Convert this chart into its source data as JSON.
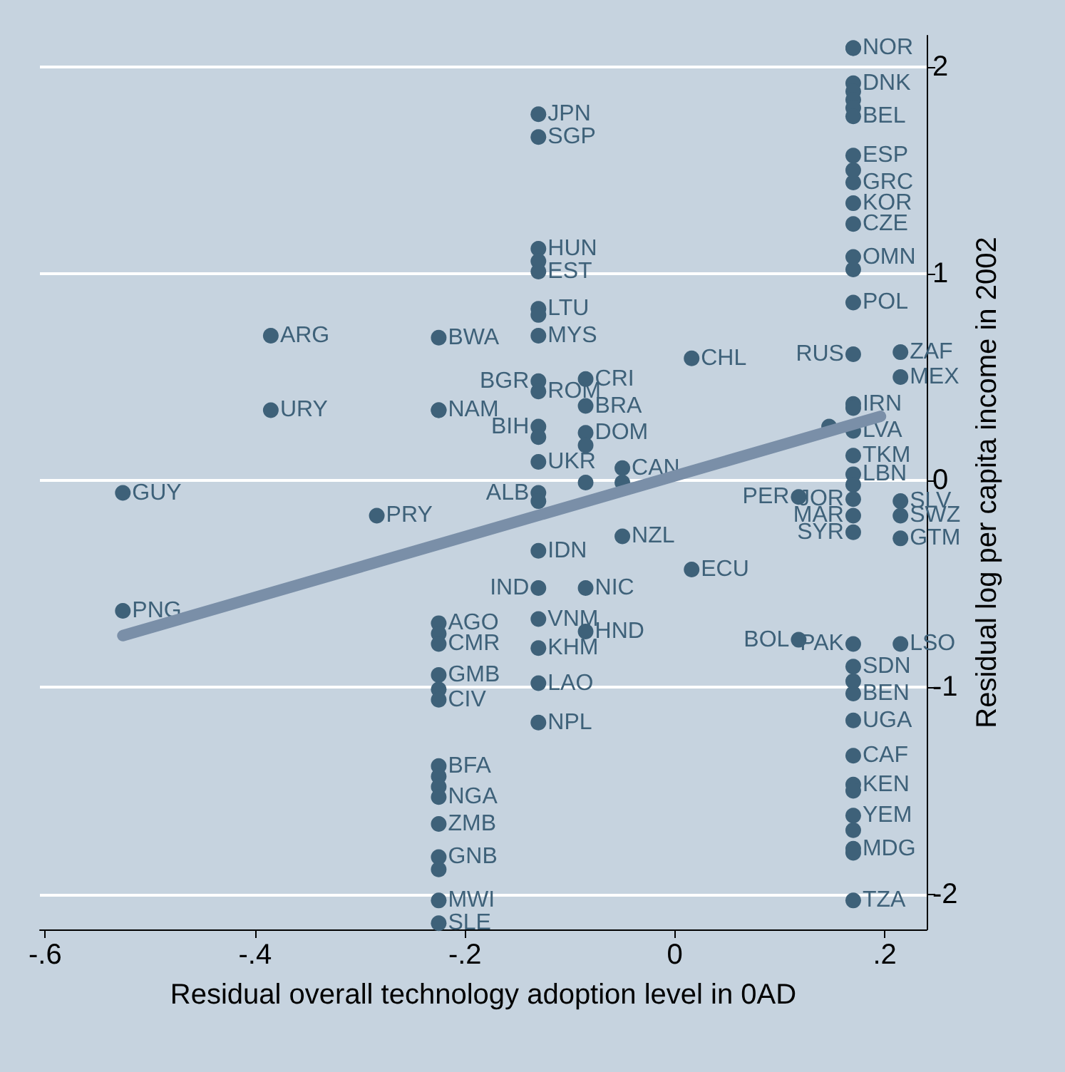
{
  "chart_data": {
    "type": "scatter",
    "xlabel": "Residual overall technology adoption level in 0AD",
    "ylabel": "Residual log per capita income in 2002",
    "xlim": [
      -0.605,
      0.24
    ],
    "ylim": [
      -2.17,
      2.15
    ],
    "xticks": [
      {
        "value": -0.6,
        "label": "-.6"
      },
      {
        "value": -0.4,
        "label": "-.4"
      },
      {
        "value": -0.2,
        "label": "-.2"
      },
      0,
      {
        "value": 0.2,
        "label": ".2"
      }
    ],
    "yticks": [
      -2,
      -1,
      0,
      1,
      2
    ],
    "grid": "y",
    "marker": "circle",
    "series": [
      {
        "color": "#3e6179",
        "x": [
          0.17,
          0.17,
          0.17,
          0.17,
          0.17,
          0.17,
          0.17,
          0.17,
          0.17,
          0.17,
          0.17,
          0.17,
          0.17,
          0.17,
          0.17,
          0.17,
          0.17,
          0.215,
          0.215,
          0.17,
          0.17,
          0.147,
          0.17,
          0.17,
          0.17,
          0.17,
          0.17,
          0.215,
          0.17,
          0.215,
          0.215,
          0.118,
          0.118,
          0.17,
          0.215,
          0.17,
          0.17,
          0.17,
          0.17,
          0.17,
          0.17,
          0.17,
          0.17,
          0.17,
          0.17,
          0.17,
          0.17,
          -0.13,
          -0.13,
          -0.13,
          -0.13,
          -0.13,
          -0.13,
          -0.13,
          -0.13,
          -0.13,
          -0.13,
          -0.085,
          -0.085,
          -0.13,
          -0.13,
          -0.085,
          -0.085,
          -0.13,
          -0.05,
          -0.13,
          -0.13,
          -0.085,
          -0.05,
          -0.05,
          0.016,
          -0.13,
          -0.13,
          -0.085,
          -0.13,
          -0.085,
          -0.13,
          -0.13,
          -0.13,
          0.016,
          -0.225,
          -0.225,
          -0.225,
          -0.225,
          -0.225,
          -0.225,
          -0.225,
          -0.225,
          -0.225,
          -0.225,
          -0.225,
          -0.225,
          -0.225,
          -0.225,
          -0.225,
          -0.225,
          -0.225,
          -0.225,
          -0.385,
          -0.385,
          -0.526,
          -0.284,
          -0.526
        ],
        "values": [
          2.09,
          2.09,
          1.92,
          1.88,
          1.84,
          1.8,
          1.76,
          1.57,
          1.5,
          1.44,
          1.34,
          1.24,
          1.08,
          1.02,
          0.86,
          0.61,
          0.37,
          0.62,
          0.5,
          0.35,
          0.24,
          0.26,
          0.12,
          0.03,
          -0.02,
          -0.09,
          -0.17,
          -0.1,
          -0.25,
          -0.17,
          -0.28,
          -0.08,
          -0.77,
          -0.79,
          -0.79,
          -0.9,
          -0.97,
          -1.03,
          -1.16,
          -1.33,
          -1.47,
          -1.5,
          -1.62,
          -1.69,
          -1.78,
          -1.8,
          -2.03,
          1.77,
          1.66,
          1.12,
          1.06,
          1.01,
          0.83,
          0.8,
          0.7,
          0.48,
          0.43,
          0.49,
          0.36,
          0.26,
          0.21,
          0.23,
          0.17,
          0.09,
          0.06,
          -0.06,
          -0.1,
          -0.01,
          -0.01,
          -0.27,
          0.59,
          -0.34,
          -0.52,
          -0.52,
          -0.67,
          -0.73,
          -0.81,
          -0.98,
          -1.17,
          -0.43,
          0.69,
          0.34,
          0.34,
          -0.69,
          -0.74,
          -0.79,
          -0.94,
          -1.01,
          -1.06,
          -1.38,
          -1.43,
          -1.48,
          -1.53,
          -1.66,
          -1.82,
          -1.88,
          -2.03,
          -2.14,
          0.7,
          0.34,
          -0.06,
          -0.17,
          -0.63
        ],
        "value_labels": [
          "NOR",
          null,
          "DNK",
          null,
          null,
          null,
          "BEL",
          "ESP",
          null,
          "GRC",
          "KOR",
          "CZE",
          "OMN",
          null,
          "POL",
          "RUS",
          "IRN",
          "ZAF",
          "MEX",
          null,
          "LVA",
          null,
          "TKM",
          "LBN",
          null,
          "JOR",
          "MAR",
          "SLV",
          "SYR",
          "SWZ",
          "GTM",
          "PER",
          "BOL",
          "PAK",
          "LSO",
          "SDN",
          null,
          "BEN",
          "UGA",
          "CAF",
          "KEN",
          null,
          "YEM",
          null,
          "MDG",
          null,
          "TZA",
          "JPN",
          "SGP",
          "HUN",
          null,
          "EST",
          "LTU",
          null,
          "MYS",
          "BGR",
          "ROM",
          "CRI",
          "BRA",
          "BIH",
          null,
          "DOM",
          null,
          "UKR",
          "CAN",
          "ALB",
          null,
          null,
          null,
          "NZL",
          "CHL",
          "IDN",
          "IND",
          "NIC",
          "VNM",
          "HND",
          "KHM",
          "LAO",
          "NPL",
          "ECU",
          "BWA",
          "NAM",
          null,
          "AGO",
          null,
          "CMR",
          "GMB",
          null,
          "CIV",
          "BFA",
          null,
          null,
          "NGA",
          "ZMB",
          "GNB",
          null,
          "MWI",
          "SLE",
          "ARG",
          "URY",
          "GUY",
          "PRY",
          "PNG"
        ]
      },
      {
        "type": "line",
        "color": "#7a8fa8",
        "x": [
          -0.526,
          0.196
        ],
        "values": [
          -0.75,
          0.31
        ],
        "marker": "none"
      }
    ]
  }
}
